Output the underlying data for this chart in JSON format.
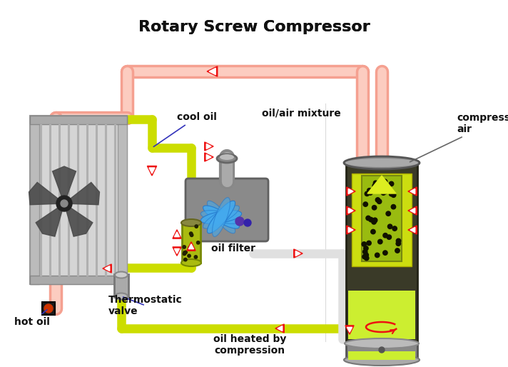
{
  "title": "Rotary Screw Compressor",
  "title_fontsize": 16,
  "bg": "#ffffff",
  "salmon": "#F5A090",
  "salmon_hi": "#FCCCC0",
  "yg": "#CCDD00",
  "white_pipe": "#E0E0E0",
  "red": "#EE1111",
  "tc": "#111111",
  "lfs": 10,
  "labels": {
    "title": "Rotary Screw Compressor",
    "cool_oil": "cool oil",
    "oil_air": "oil/air mixture",
    "compressed_air": "compressed\nair",
    "hot_oil": "hot oil",
    "thermo": "Thermostatic\nvalve",
    "oil_filter": "oil filter",
    "oil_heated": "oil heated by\ncompression"
  }
}
